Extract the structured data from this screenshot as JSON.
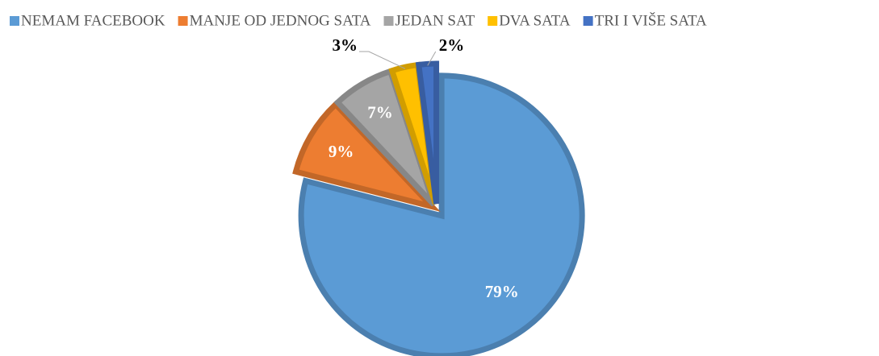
{
  "chart_data": {
    "type": "pie",
    "categories": [
      "NEMAM FACEBOOK",
      "MANJE OD JEDNOG SATA",
      "JEDAN SAT",
      "DVA SATA",
      "TRI I VIŠE SATA"
    ],
    "values": [
      79,
      9,
      7,
      3,
      2
    ],
    "value_labels": [
      "79%",
      "9%",
      "7%",
      "3%",
      "2%"
    ],
    "colors": [
      "#5b9bd5",
      "#ed7d31",
      "#a5a5a5",
      "#ffc000",
      "#4472c4"
    ],
    "legend": "top"
  }
}
